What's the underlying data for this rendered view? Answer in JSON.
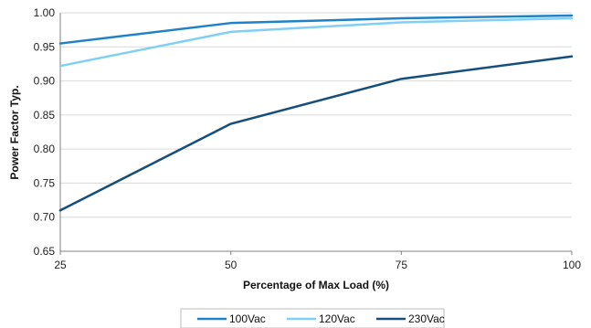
{
  "chart_data": {
    "type": "line",
    "title": "",
    "xlabel": "Percentage of Max Load (%)",
    "ylabel": "Power Factor Typ.",
    "x": [
      25,
      50,
      75,
      100
    ],
    "x_ticks": [
      "25",
      "50",
      "75",
      "100"
    ],
    "ylim": [
      0.65,
      1.0
    ],
    "y_ticks": [
      "0.65",
      "0.70",
      "0.75",
      "0.80",
      "0.85",
      "0.90",
      "0.95",
      "1.00"
    ],
    "grid": "horizontal",
    "legend_position": "bottom",
    "series": [
      {
        "name": "100Vac",
        "color": "#1f82c8",
        "values": [
          0.955,
          0.985,
          0.992,
          0.996
        ]
      },
      {
        "name": "120Vac",
        "color": "#7fd0f4",
        "values": [
          0.922,
          0.972,
          0.986,
          0.992
        ]
      },
      {
        "name": "230Vac",
        "color": "#164f7c",
        "values": [
          0.71,
          0.837,
          0.903,
          0.936
        ]
      }
    ]
  }
}
